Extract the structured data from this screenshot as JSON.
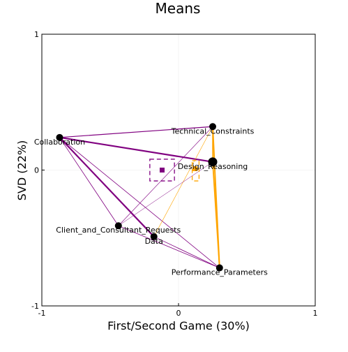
{
  "chart_data": {
    "type": "scatter",
    "title": "Means",
    "xlabel": "First/Second Game (30%)",
    "ylabel": "SVD (22%)",
    "xlim": [
      -1,
      1
    ],
    "ylim": [
      -1,
      1
    ],
    "xticks": [
      -1,
      0,
      1
    ],
    "yticks": [
      -1,
      0,
      1
    ],
    "xtick_labels": [
      "-1",
      "0",
      "1"
    ],
    "ytick_labels": [
      "-1",
      "0",
      "1"
    ],
    "grid": true,
    "legend": "none",
    "colors": {
      "purple": "#800080",
      "orange": "#ffa500",
      "black": "#000000"
    },
    "nodes": [
      {
        "label": "Technical_Constraints",
        "x": 0.25,
        "y": 0.32
      },
      {
        "label": "Collaboration",
        "x": -0.87,
        "y": 0.24
      },
      {
        "label": "Design_Reasoning",
        "x": 0.25,
        "y": 0.06
      },
      {
        "label": "Client_and_Consultant_Requests",
        "x": -0.44,
        "y": -0.41
      },
      {
        "label": "Data",
        "x": -0.18,
        "y": -0.49
      },
      {
        "label": "Performance_Parameters",
        "x": 0.3,
        "y": -0.72
      }
    ],
    "means": [
      {
        "group": "purple",
        "x": -0.12,
        "y": 0.0,
        "box_x": [
          -0.21,
          -0.03
        ],
        "box_y": [
          -0.08,
          0.08
        ]
      },
      {
        "group": "orange",
        "x": 0.12,
        "y": 0.01,
        "box_x": [
          0.1,
          0.15
        ],
        "box_y": [
          -0.08,
          0.07
        ]
      }
    ],
    "edges": [
      {
        "from": "Collaboration",
        "to": "Technical_Constraints",
        "color": "purple",
        "width": 1.2
      },
      {
        "from": "Collaboration",
        "to": "Design_Reasoning",
        "color": "purple",
        "width": 2.2
      },
      {
        "from": "Collaboration",
        "to": "Data",
        "color": "purple",
        "width": 2.2
      },
      {
        "from": "Collaboration",
        "to": "Client_and_Consultant_Requests",
        "color": "purple",
        "width": 0.8
      },
      {
        "from": "Collaboration",
        "to": "Performance_Parameters",
        "color": "purple",
        "width": 0.8
      },
      {
        "from": "Technical_Constraints",
        "to": "Client_and_Consultant_Requests",
        "color": "purple",
        "width": 0.6
      },
      {
        "from": "Technical_Constraints",
        "to": "Data",
        "color": "orange",
        "width": 0.6
      },
      {
        "from": "Technical_Constraints",
        "to": "Performance_Parameters",
        "color": "orange",
        "width": 2.0
      },
      {
        "from": "Technical_Constraints",
        "to": "Design_Reasoning",
        "color": "orange",
        "width": 1.5
      },
      {
        "from": "Design_Reasoning",
        "to": "Performance_Parameters",
        "color": "orange",
        "width": 1.8
      },
      {
        "from": "Design_Reasoning",
        "to": "Client_and_Consultant_Requests",
        "color": "purple",
        "width": 0.5
      },
      {
        "from": "Client_and_Consultant_Requests",
        "to": "Performance_Parameters",
        "color": "purple",
        "width": 0.8
      },
      {
        "from": "Data",
        "to": "Performance_Parameters",
        "color": "purple",
        "width": 0.8
      }
    ]
  }
}
